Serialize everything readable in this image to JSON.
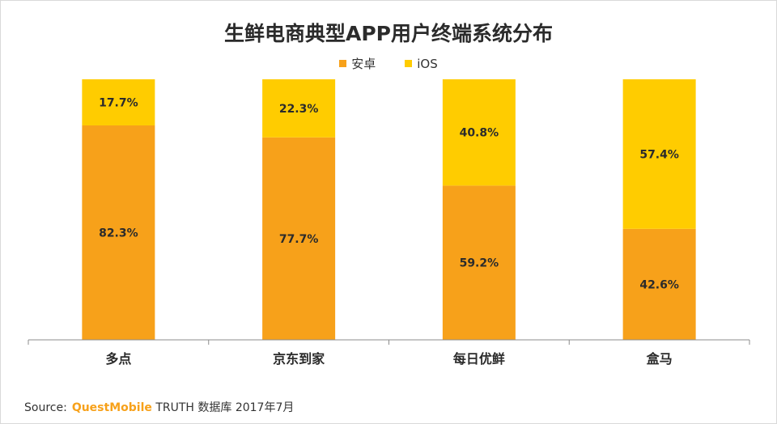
{
  "chart_data": {
    "type": "bar",
    "stacked": true,
    "title": "生鲜电商典型APP用户终端系统分布",
    "categories": [
      "多点",
      "京东到家",
      "每日优鲜",
      "盒马"
    ],
    "series": [
      {
        "name": "安卓",
        "color": "#f7a11a",
        "values": [
          82.3,
          77.7,
          59.2,
          42.6
        ],
        "labels": [
          "82.3%",
          "77.7%",
          "59.2%",
          "42.6%"
        ]
      },
      {
        "name": "iOS",
        "color": "#ffcc00",
        "values": [
          17.7,
          22.3,
          40.8,
          57.4
        ],
        "labels": [
          "17.7%",
          "22.3%",
          "40.8%",
          "57.4%"
        ]
      }
    ],
    "ylim": [
      0,
      100
    ],
    "grid": false,
    "legend_position": "top-center"
  },
  "source": {
    "prefix": "Source:",
    "brand": "QuestMobile",
    "text": "TRUTH 数据库 2017年7月"
  }
}
